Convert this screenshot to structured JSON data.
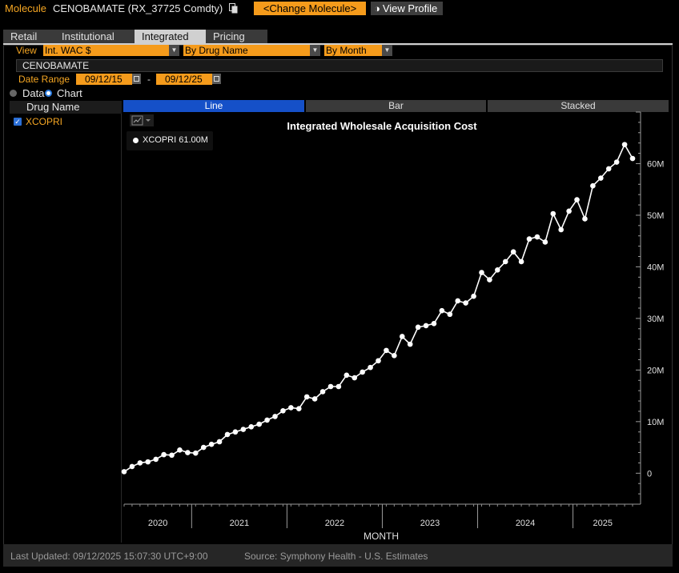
{
  "header": {
    "molecule_label": "Molecule",
    "molecule_name": "CENOBAMATE (RX_37725 Comdty)",
    "change_button": "<Change Molecule>",
    "view_profile_button": "View Profile",
    "accent_color": "#f59b1b"
  },
  "tabs": [
    {
      "label": "Retail",
      "active": false
    },
    {
      "label": "Institutional",
      "active": false
    },
    {
      "label": "Integrated",
      "active": true
    },
    {
      "label": "Pricing",
      "active": false
    }
  ],
  "controls": {
    "view_label": "View",
    "view_select": "Int. WAC $",
    "group_select": "By Drug Name",
    "period_select": "By Month",
    "molecule_field": "CENOBAMATE",
    "date_range_label": "Date Range",
    "date_start": "09/12/15",
    "date_separator": "-",
    "date_end": "09/12/25",
    "mode_data": "Data",
    "mode_chart": "Chart",
    "selected_mode": "Chart"
  },
  "drug_list": {
    "header": "Drug Name",
    "items": [
      {
        "label": "XCOPRI",
        "checked": true
      }
    ]
  },
  "chart_tabs": [
    {
      "label": "Line",
      "active": true
    },
    {
      "label": "Bar",
      "active": false
    },
    {
      "label": "Stacked",
      "active": false
    }
  ],
  "legend": {
    "text": "XCOPRI 61.00M"
  },
  "chart_data": {
    "type": "line",
    "title": "Integrated Wholesale Acquisition Cost",
    "xlabel": "MONTH",
    "ylabel": "",
    "ylim": [
      -6,
      70
    ],
    "y_ticks": [
      0,
      10,
      20,
      30,
      40,
      50,
      60
    ],
    "y_tick_labels": [
      "0",
      "10M",
      "20M",
      "30M",
      "40M",
      "50M",
      "60M"
    ],
    "x_tick_labels": [
      "2020",
      "2021",
      "2022",
      "2023",
      "2024",
      "2025"
    ],
    "x_start": "2020-04",
    "x_end": "2025-08",
    "series": [
      {
        "name": "XCOPRI",
        "color": "#ffffff",
        "values": [
          0.3,
          1.3,
          2.0,
          2.2,
          2.7,
          3.6,
          3.5,
          4.5,
          4.0,
          3.9,
          5.0,
          5.6,
          6.1,
          7.5,
          8.0,
          8.5,
          9.0,
          9.5,
          10.3,
          11.0,
          12.1,
          12.7,
          12.5,
          14.8,
          14.4,
          15.8,
          16.8,
          16.8,
          19.0,
          18.5,
          19.6,
          20.5,
          21.8,
          23.8,
          22.8,
          26.5,
          25.0,
          28.3,
          28.6,
          29.0,
          31.5,
          30.8,
          33.4,
          33.0,
          34.3,
          38.9,
          37.5,
          39.4,
          41.0,
          42.9,
          41.0,
          45.4,
          45.8,
          44.8,
          50.3,
          47.2,
          50.8,
          53.0,
          49.3,
          55.7,
          57.2,
          59.0,
          60.3,
          63.7,
          61.0
        ]
      }
    ]
  },
  "footer": {
    "last_updated": "Last Updated: 09/12/2025 15:07:30 UTC+9:00",
    "source": "Source: Symphony Health - U.S. Estimates"
  }
}
